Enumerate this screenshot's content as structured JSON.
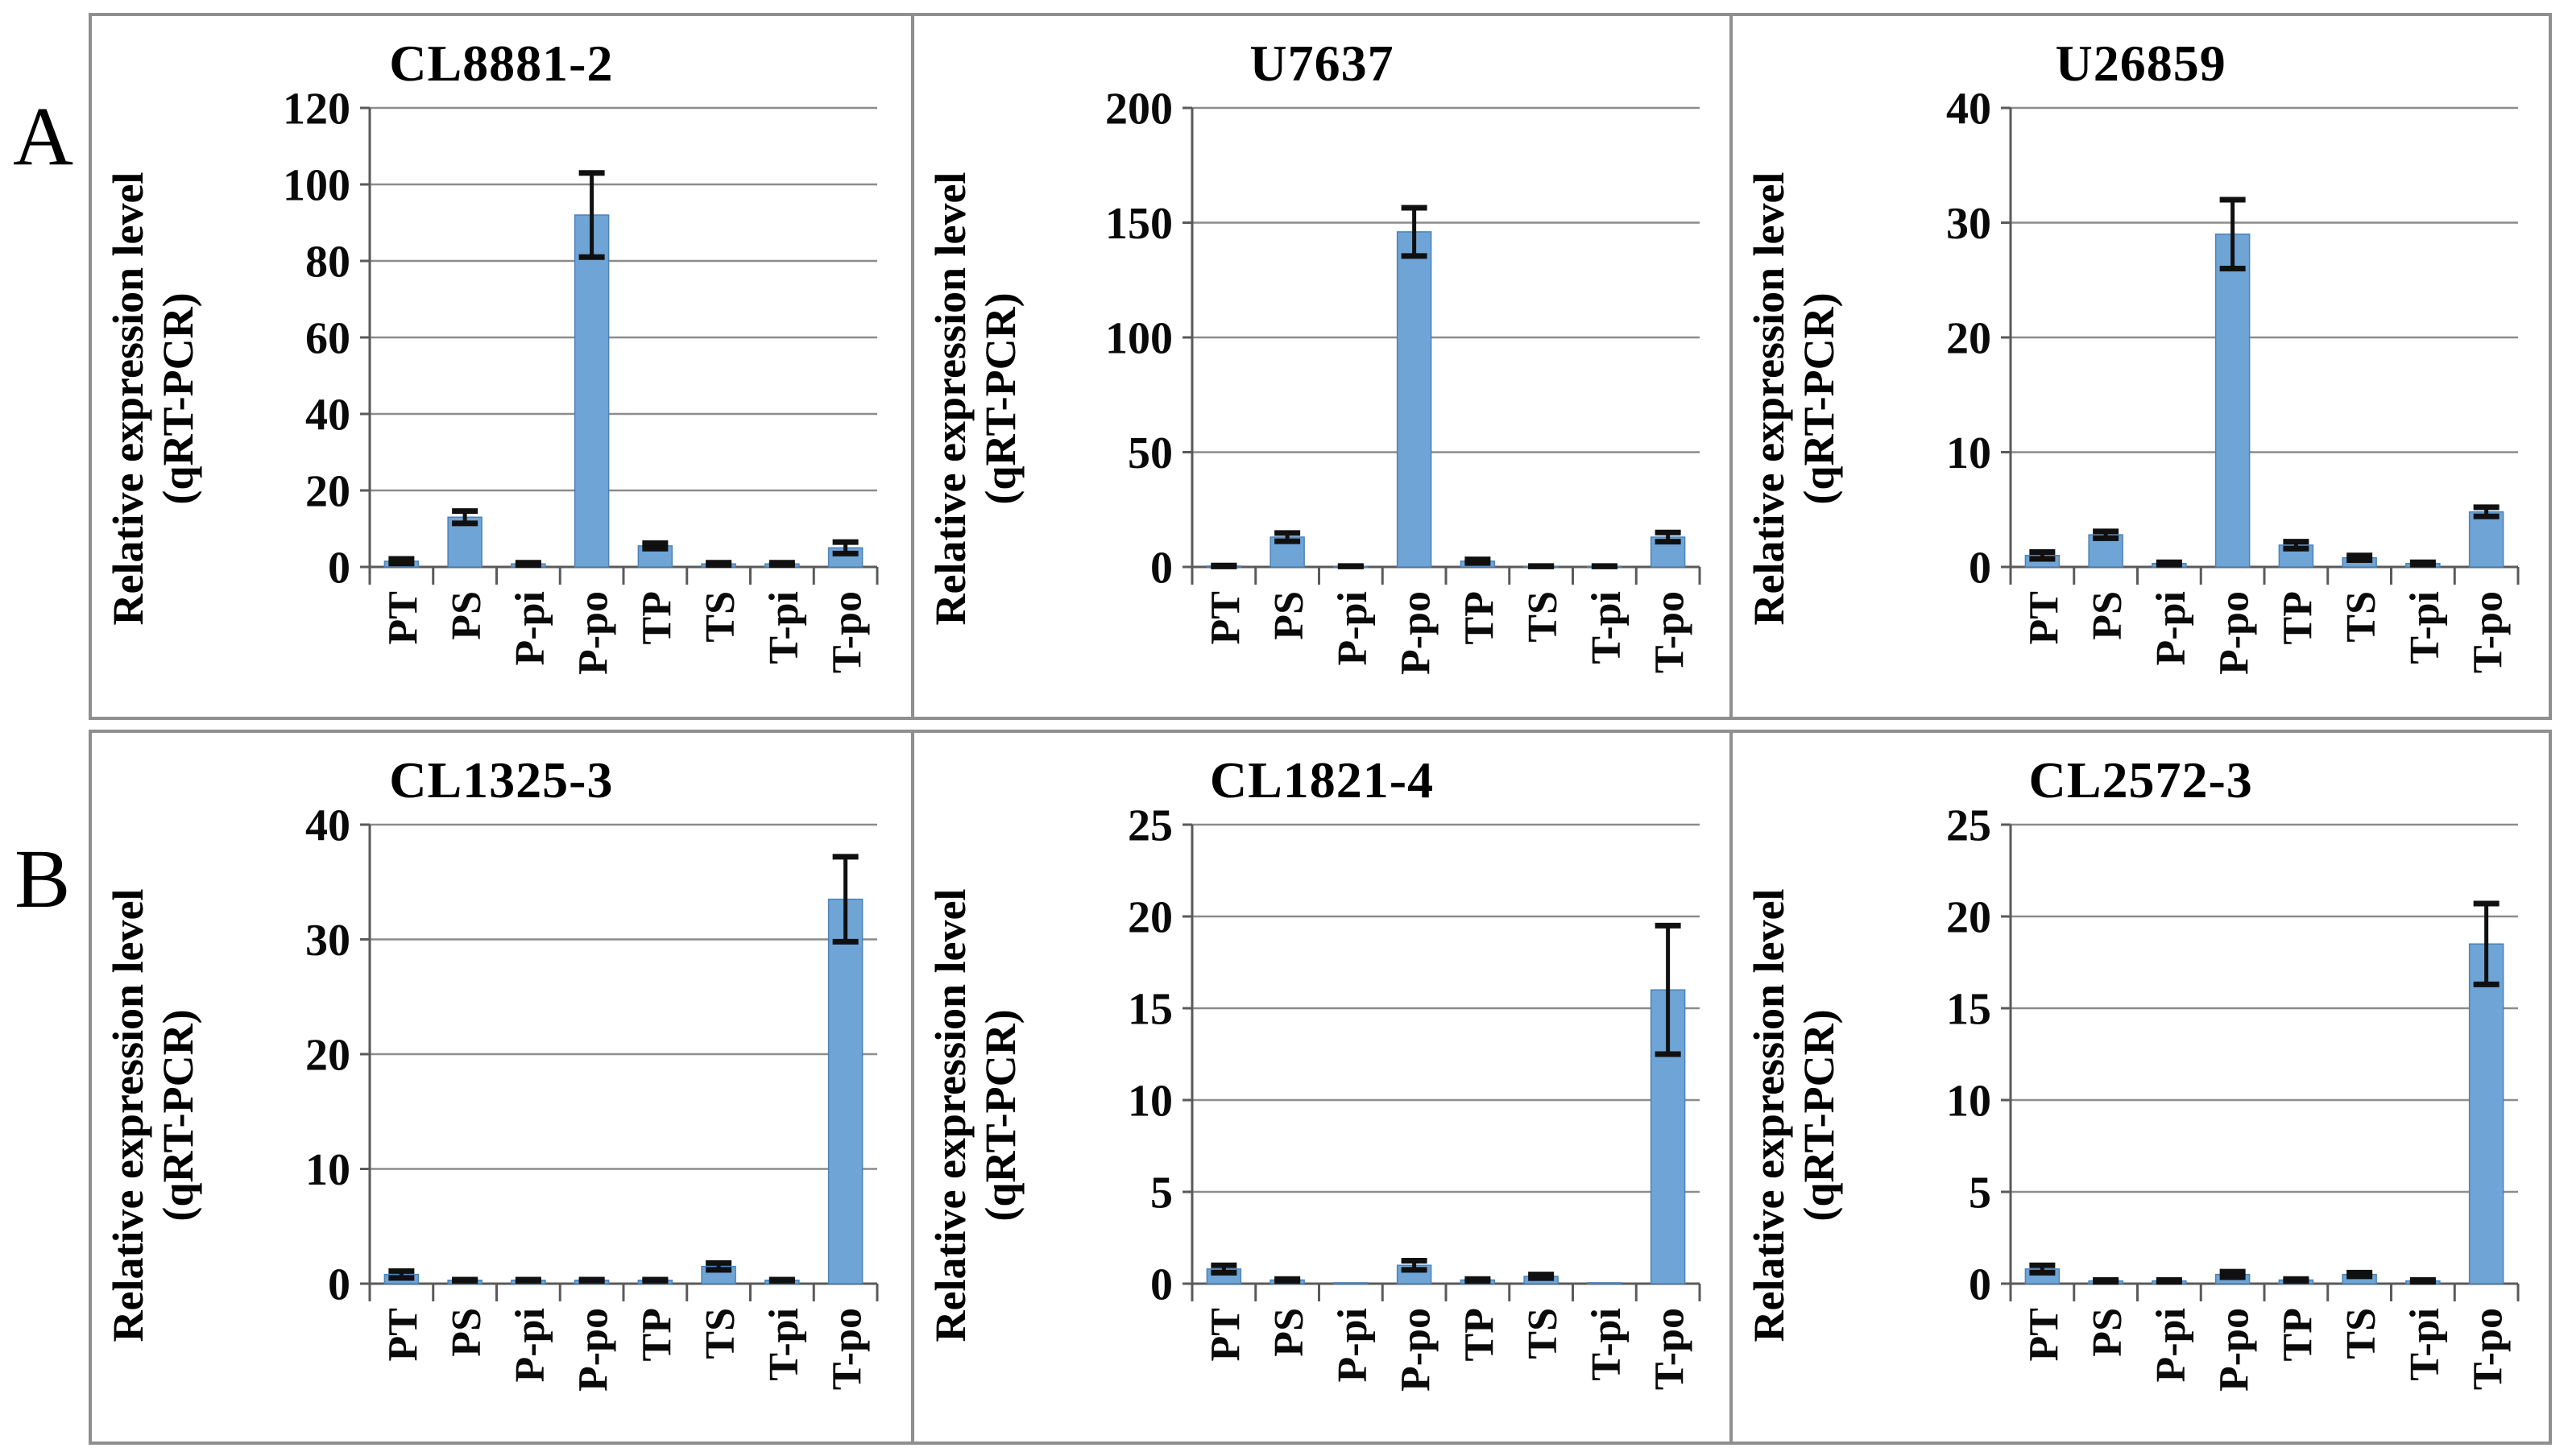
{
  "figure": {
    "panel_a_label": "A",
    "panel_b_label": "B",
    "ylabel_line1": "Relative expression level",
    "ylabel_line2": "(qRT-PCR)"
  },
  "colors": {
    "bar_fill": "#6fa5d6",
    "bar_edge": "#4d82b8",
    "error_bar": "#101010",
    "gridline": "#8c8c8c",
    "axis": "#5a5a5a",
    "tick_text": "#0a0a0a",
    "panel_border": "#8f8f8f"
  },
  "chart_data": [
    {
      "type": "bar",
      "panel": "A",
      "title": "CL8881-2",
      "ylabel": "Relative expression level (qRT-PCR)",
      "categories": [
        "PT",
        "PS",
        "P-pi",
        "P-po",
        "TP",
        "TS",
        "T-pi",
        "T-po"
      ],
      "values": [
        1.5,
        13,
        0.8,
        92,
        5.5,
        0.8,
        0.8,
        5
      ],
      "errors": [
        0.6,
        1.6,
        0.3,
        11,
        0.7,
        0.3,
        0.3,
        1.5
      ],
      "ylim": [
        0,
        120
      ],
      "ytick_step": 20,
      "grid": true
    },
    {
      "type": "bar",
      "panel": "A",
      "title": "U7637",
      "ylabel": "Relative expression level (qRT-PCR)",
      "categories": [
        "PT",
        "PS",
        "P-pi",
        "P-po",
        "TP",
        "TS",
        "T-pi",
        "T-po"
      ],
      "values": [
        0.4,
        13,
        0.3,
        146,
        2.5,
        0.3,
        0.3,
        13
      ],
      "errors": [
        0.2,
        1.8,
        0.1,
        10.5,
        0.8,
        0.1,
        0.1,
        2
      ],
      "ylim": [
        0,
        200
      ],
      "ytick_step": 50,
      "grid": true
    },
    {
      "type": "bar",
      "panel": "A",
      "title": "U26859",
      "ylabel": "Relative expression level (qRT-PCR)",
      "categories": [
        "PT",
        "PS",
        "P-pi",
        "P-po",
        "TP",
        "TS",
        "T-pi",
        "T-po"
      ],
      "values": [
        1.0,
        2.8,
        0.3,
        29,
        1.9,
        0.8,
        0.3,
        4.8
      ],
      "errors": [
        0.3,
        0.3,
        0.1,
        3,
        0.3,
        0.2,
        0.1,
        0.4
      ],
      "ylim": [
        0,
        40
      ],
      "ytick_step": 10,
      "grid": true
    },
    {
      "type": "bar",
      "panel": "B",
      "title": "CL1325-3",
      "ylabel": "Relative expression level (qRT-PCR)",
      "categories": [
        "PT",
        "PS",
        "P-pi",
        "P-po",
        "TP",
        "TS",
        "T-pi",
        "T-po"
      ],
      "values": [
        0.8,
        0.3,
        0.3,
        0.3,
        0.3,
        1.5,
        0.3,
        33.5
      ],
      "errors": [
        0.3,
        0.05,
        0.05,
        0.05,
        0.05,
        0.3,
        0.05,
        3.7
      ],
      "ylim": [
        0,
        40
      ],
      "ytick_step": 10,
      "grid": true
    },
    {
      "type": "bar",
      "panel": "B",
      "title": "CL1821-4",
      "ylabel": "Relative expression level (qRT-PCR)",
      "categories": [
        "PT",
        "PS",
        "P-pi",
        "P-po",
        "TP",
        "TS",
        "T-pi",
        "T-po"
      ],
      "values": [
        0.8,
        0.2,
        0.05,
        1.0,
        0.2,
        0.4,
        0.05,
        16
      ],
      "errors": [
        0.2,
        0.05,
        0,
        0.25,
        0.05,
        0.1,
        0,
        3.5
      ],
      "ylim": [
        0,
        25
      ],
      "ytick_step": 5,
      "grid": true
    },
    {
      "type": "bar",
      "panel": "B",
      "title": "CL2572-3",
      "ylabel": "Relative expression level (qRT-PCR)",
      "categories": [
        "PT",
        "PS",
        "P-pi",
        "P-po",
        "TP",
        "TS",
        "T-pi",
        "T-po"
      ],
      "values": [
        0.8,
        0.15,
        0.15,
        0.5,
        0.2,
        0.5,
        0.15,
        18.5
      ],
      "errors": [
        0.2,
        0.05,
        0.05,
        0.15,
        0.05,
        0.1,
        0.05,
        2.2
      ],
      "ylim": [
        0,
        25
      ],
      "ytick_step": 5,
      "grid": true
    }
  ]
}
